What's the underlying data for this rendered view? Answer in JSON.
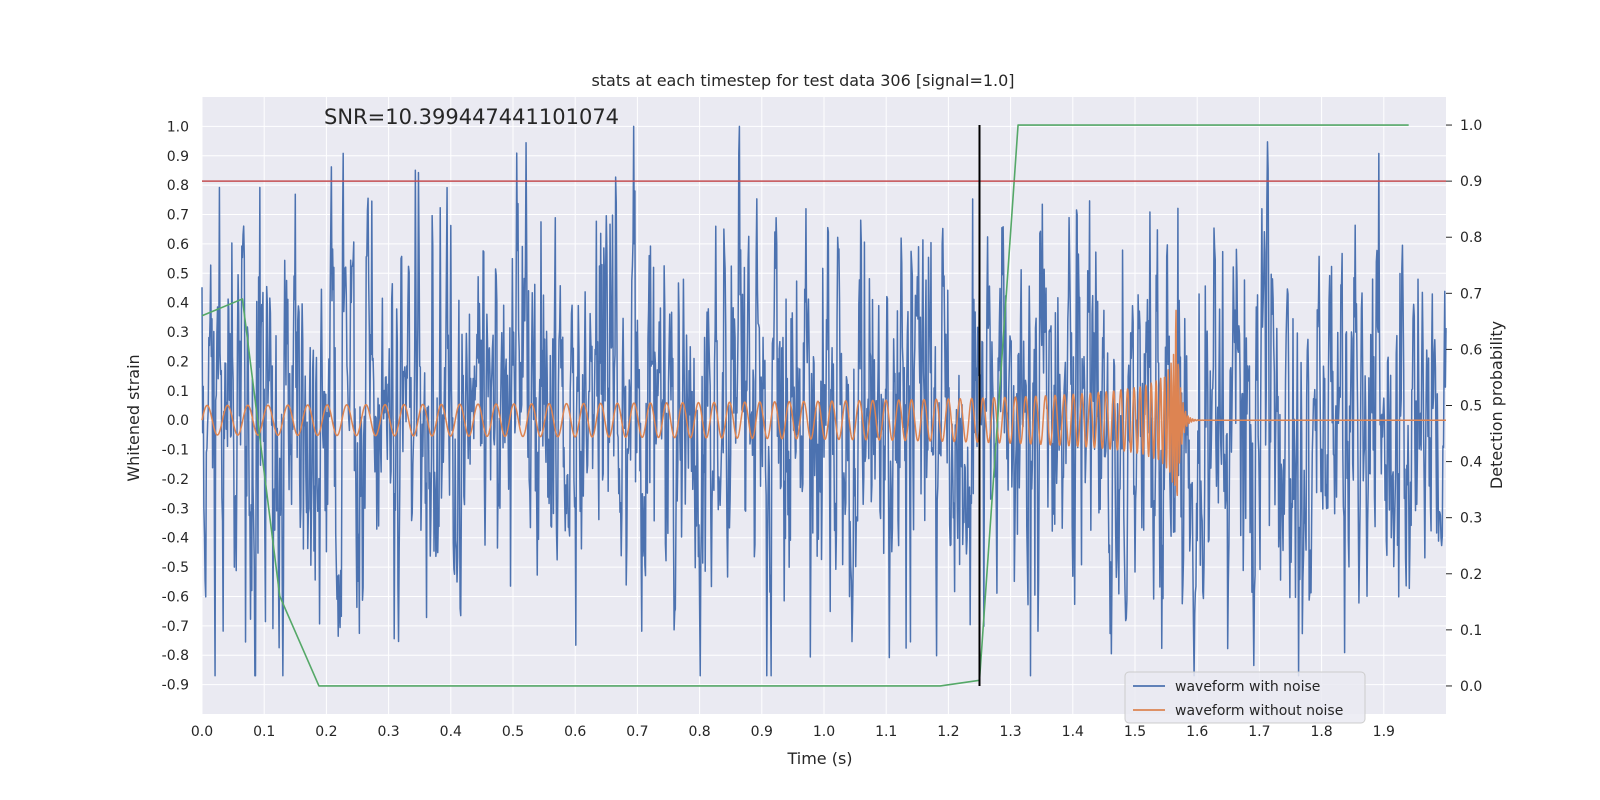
{
  "chart_data": {
    "type": "line",
    "title": "stats at each timestep for test data 306 [signal=1.0]",
    "annotation": "SNR=10.399447441101074",
    "xlabel": "Time (s)",
    "ylabel_left": "Whitened strain",
    "ylabel_right": "Detection probability",
    "xlim": [
      0.0,
      2.0
    ],
    "ylim_left": [
      -1.0,
      1.1
    ],
    "ylim_right": [
      -0.05,
      1.05
    ],
    "x_ticks": [
      "0.0",
      "0.1",
      "0.2",
      "0.3",
      "0.4",
      "0.5",
      "0.6",
      "0.7",
      "0.8",
      "0.9",
      "1.0",
      "1.1",
      "1.2",
      "1.3",
      "1.4",
      "1.5",
      "1.6",
      "1.7",
      "1.8",
      "1.9"
    ],
    "y_left_ticks": [
      "1.0",
      "0.9",
      "0.8",
      "0.7",
      "0.6",
      "0.5",
      "0.4",
      "0.3",
      "0.2",
      "0.1",
      "0.0",
      "-0.1",
      "-0.2",
      "-0.3",
      "-0.4",
      "-0.5",
      "-0.6",
      "-0.7",
      "-0.8",
      "-0.9"
    ],
    "y_right_ticks": [
      "1.0",
      "0.9",
      "0.8",
      "0.7",
      "0.6",
      "0.5",
      "0.4",
      "0.3",
      "0.2",
      "0.1",
      "0.0"
    ],
    "threshold": {
      "axis": "right",
      "value": 0.9,
      "color": "#c44e52"
    },
    "event_marker": {
      "x": 1.25,
      "color": "#000000"
    },
    "series": [
      {
        "name": "waveform with noise",
        "color": "#4c72b0",
        "axis": "left",
        "kind": "noise",
        "x_range": [
          0.0,
          2.0
        ],
        "amplitude_range": [
          -0.87,
          1.0
        ]
      },
      {
        "name": "waveform without noise",
        "color": "#dd8452",
        "axis": "left",
        "kind": "chirp",
        "x_range": [
          0.0,
          2.0
        ],
        "peak_time": 1.565,
        "start_amplitude": 0.05,
        "peak_amplitude": 0.46
      },
      {
        "name": "Detection probability",
        "color": "#55a868",
        "axis": "right",
        "kind": "line",
        "x": [
          0.0,
          0.065,
          0.125,
          0.188,
          0.25,
          1.187,
          1.25,
          1.312,
          1.375,
          1.94
        ],
        "y": [
          0.66,
          0.69,
          0.16,
          0.0,
          0.0,
          0.0,
          0.01,
          1.0,
          1.0,
          1.0
        ]
      }
    ],
    "legend": {
      "placement": "bottom-right",
      "entries": [
        "waveform with noise",
        "waveform without noise"
      ]
    },
    "grid": true
  }
}
